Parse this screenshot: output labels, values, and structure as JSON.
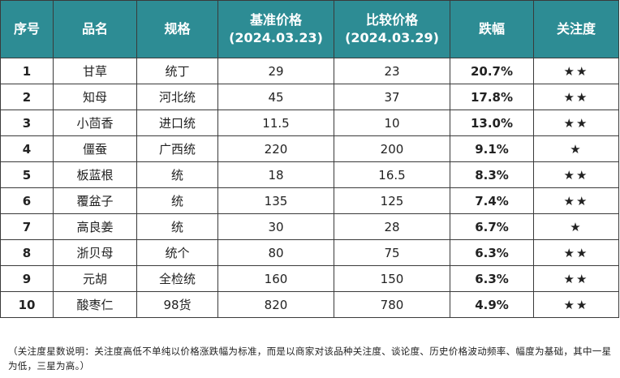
{
  "headers": {
    "idx": "序号",
    "name": "品名",
    "spec": "规格",
    "base_title": "基准价格",
    "base_date": "(2024.03.23)",
    "cmp_title": "比较价格",
    "cmp_date": "(2024.03.29)",
    "change": "跌幅",
    "attention": "关注度"
  },
  "rows": [
    {
      "idx": "1",
      "name": "甘草",
      "spec": "统丁",
      "base": "29",
      "cmp": "23",
      "change": "20.7%",
      "stars": "★★"
    },
    {
      "idx": "2",
      "name": "知母",
      "spec": "河北统",
      "base": "45",
      "cmp": "37",
      "change": "17.8%",
      "stars": "★★"
    },
    {
      "idx": "3",
      "name": "小茴香",
      "spec": "进口统",
      "base": "11.5",
      "cmp": "10",
      "change": "13.0%",
      "stars": "★★"
    },
    {
      "idx": "4",
      "name": "僵蚕",
      "spec": "广西统",
      "base": "220",
      "cmp": "200",
      "change": "9.1%",
      "stars": "★"
    },
    {
      "idx": "5",
      "name": "板蓝根",
      "spec": "统",
      "base": "18",
      "cmp": "16.5",
      "change": "8.3%",
      "stars": "★★"
    },
    {
      "idx": "6",
      "name": "覆盆子",
      "spec": "统",
      "base": "135",
      "cmp": "125",
      "change": "7.4%",
      "stars": "★★"
    },
    {
      "idx": "7",
      "name": "高良姜",
      "spec": "统",
      "base": "30",
      "cmp": "28",
      "change": "6.7%",
      "stars": "★"
    },
    {
      "idx": "8",
      "name": "浙贝母",
      "spec": "统个",
      "base": "80",
      "cmp": "75",
      "change": "6.3%",
      "stars": "★★"
    },
    {
      "idx": "9",
      "name": "元胡",
      "spec": "全检统",
      "base": "160",
      "cmp": "150",
      "change": "6.3%",
      "stars": "★★"
    },
    {
      "idx": "10",
      "name": "酸枣仁",
      "spec": "98货",
      "base": "820",
      "cmp": "780",
      "change": "4.9%",
      "stars": "★★"
    }
  ],
  "note": "（关注度星数说明：关注度高低不单纯以价格涨跌幅为标准，而是以商家对该品种关注度、谈论度、历史价格波动频率、幅度为基础，其中一星为低，三星为高。）",
  "colors": {
    "header_bg": "#2d8c94",
    "change_text": "#27a647",
    "star": "#f5b342"
  }
}
